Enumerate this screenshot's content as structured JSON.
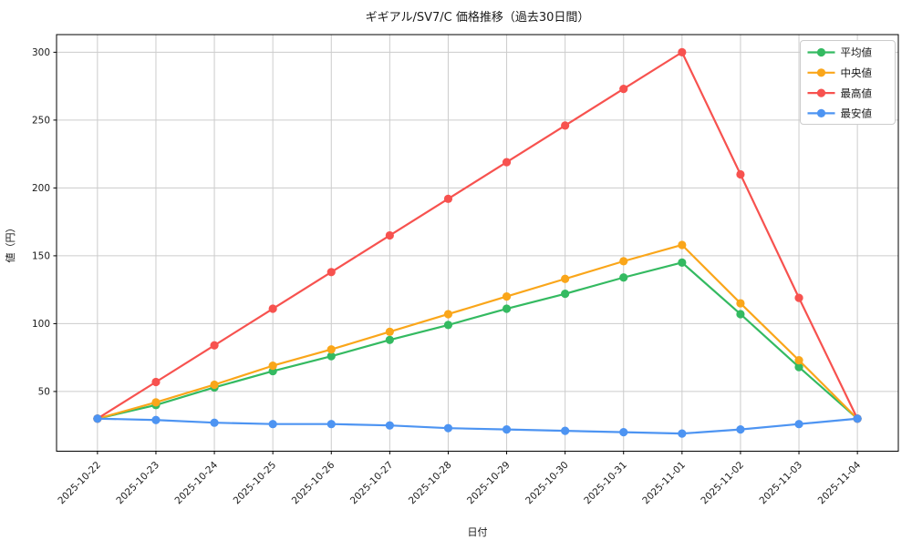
{
  "chart_title": "ギギアル/SV7/C 価格推移（過去30日間）",
  "chart_data": {
    "type": "line",
    "title": "ギギアル/SV7/C 価格推移（過去30日間）",
    "xlabel": "日付",
    "ylabel": "値（円）",
    "x": [
      "2025-10-22",
      "2025-10-23",
      "2025-10-24",
      "2025-10-25",
      "2025-10-26",
      "2025-10-27",
      "2025-10-28",
      "2025-10-29",
      "2025-10-30",
      "2025-10-31",
      "2025-11-01",
      "2025-11-02",
      "2025-11-03",
      "2025-11-04"
    ],
    "series": [
      {
        "key": "average",
        "name": "平均値",
        "color": "#34ba61",
        "values": [
          30,
          40,
          53,
          65,
          76,
          88,
          99,
          111,
          122,
          134,
          145,
          107,
          68,
          30
        ]
      },
      {
        "key": "median",
        "name": "中央値",
        "color": "#faa61a",
        "values": [
          30,
          42,
          55,
          69,
          81,
          94,
          107,
          120,
          133,
          146,
          158,
          115,
          73,
          30
        ]
      },
      {
        "key": "max",
        "name": "最高値",
        "color": "#f7524f",
        "values": [
          30,
          57,
          84,
          111,
          138,
          165,
          192,
          219,
          246,
          273,
          300,
          210,
          119,
          30
        ]
      },
      {
        "key": "min",
        "name": "最安値",
        "color": "#4d94f2",
        "values": [
          30,
          29,
          27,
          26,
          26,
          25,
          23,
          22,
          21,
          20,
          19,
          22,
          26,
          30
        ]
      }
    ],
    "yticks": [
      50,
      100,
      150,
      200,
      250,
      300
    ],
    "ylim": [
      6,
      313
    ],
    "grid": true,
    "grid_color": "#cccccc",
    "axis_color": "#000000",
    "legend_position": "upper right"
  }
}
